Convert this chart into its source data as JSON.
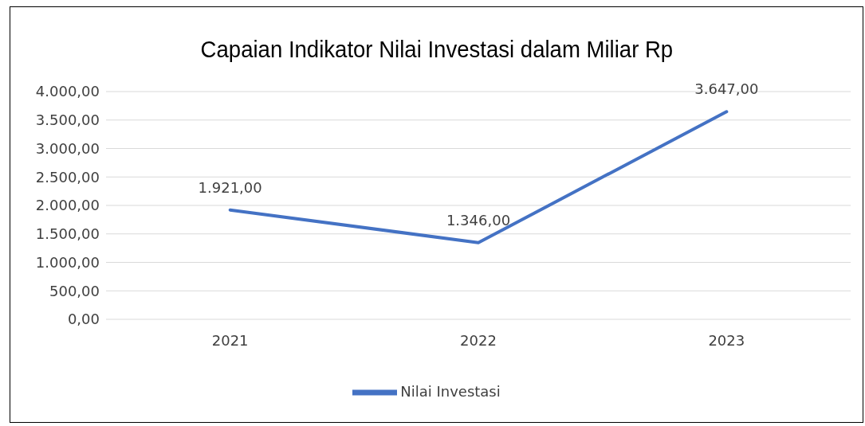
{
  "chart_data": {
    "type": "line",
    "title": "Capaian Indikator Nilai Investasi dalam Miliar Rp",
    "categories": [
      "2021",
      "2022",
      "2023"
    ],
    "series": [
      {
        "name": "Nilai Investasi",
        "color": "#4472c4",
        "values": [
          1921,
          1346,
          3647
        ],
        "value_labels": [
          "1.921,00",
          "1.346,00",
          "3.647,00"
        ]
      }
    ],
    "ylim": [
      0,
      4000
    ],
    "yticks": [
      {
        "value": 0,
        "label": "0,00"
      },
      {
        "value": 500,
        "label": "500,00"
      },
      {
        "value": 1000,
        "label": "1.000,00"
      },
      {
        "value": 1500,
        "label": "1.500,00"
      },
      {
        "value": 2000,
        "label": "2.000,00"
      },
      {
        "value": 2500,
        "label": "2.500,00"
      },
      {
        "value": 3000,
        "label": "3.000,00"
      },
      {
        "value": 3500,
        "label": "3.500,00"
      },
      {
        "value": 4000,
        "label": "4.000,00"
      }
    ],
    "grid": "y",
    "legend": "bottom",
    "line_style": "solid"
  }
}
